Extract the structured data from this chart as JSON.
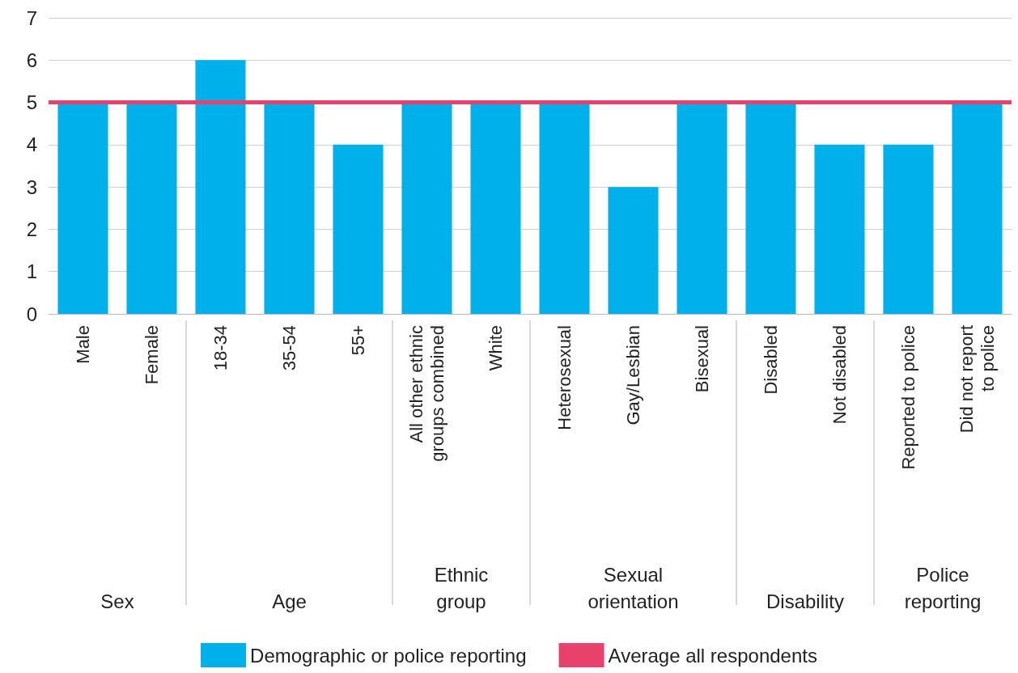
{
  "chart_data": {
    "type": "bar",
    "categories": [
      "Male",
      "Female",
      "18-34",
      "35-54",
      "55+",
      "All other ethnic groups combined",
      "White",
      "Heterosexual",
      "Gay/Lesbian",
      "Bisexual",
      "Disabled",
      "Not disabled",
      "Reported to police",
      "Did not report to police"
    ],
    "series": [
      {
        "name": "Demographic or police reporting",
        "color": "#00b0ea",
        "values": [
          5,
          5,
          6,
          5,
          4,
          5,
          5,
          5,
          3,
          5,
          5,
          4,
          4,
          5
        ]
      }
    ],
    "annotations": [
      "Sex",
      "Age",
      "Ethnic group",
      "Sexual orientation",
      "Disability",
      "Police reporting"
    ],
    "ref_lines": [
      {
        "axis": "y",
        "value": 5,
        "label": "Average all respondents",
        "color": "#e8416b"
      }
    ],
    "ylim": [
      0,
      7
    ],
    "yticks": [
      0,
      1,
      2,
      3,
      4,
      5,
      6,
      7
    ],
    "grid": "y",
    "legend": "bottom"
  }
}
